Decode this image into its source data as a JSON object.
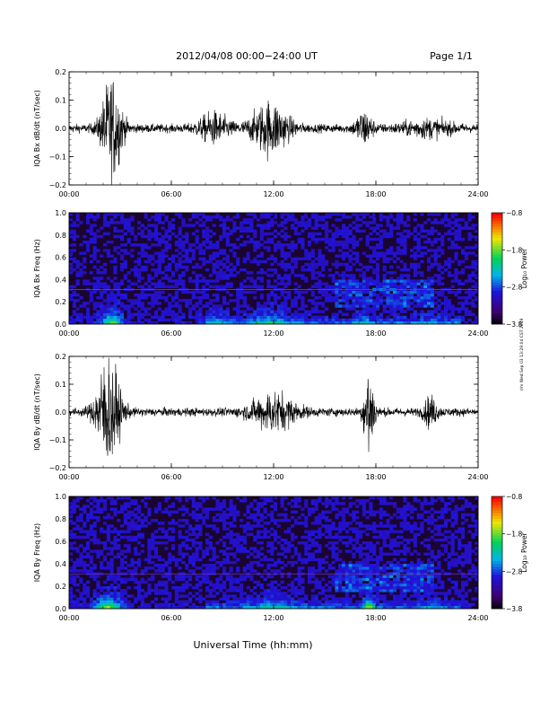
{
  "header": {
    "title": "2012/04/08   00:00−24:00 UT",
    "page": "Page 1/1"
  },
  "side_stamp": "r/m Wed Sep 03 13:29:04 CST 2019",
  "colors": {
    "spectrogram_background": "#1a0530",
    "trace": "#000000"
  },
  "chart_data": [
    {
      "type": "line",
      "ylabel": "IQA Bx dB/dt (nT/sec)",
      "xlim": [
        0,
        24
      ],
      "ylim": [
        -0.2,
        0.2
      ],
      "xticks": [
        "00:00",
        "06:00",
        "12:00",
        "18:00",
        "24:00"
      ],
      "yticks": [
        "−0.2",
        "−0.1",
        "0.0",
        "0.1",
        "0.2"
      ],
      "noise_floor": 0.018,
      "activity": [
        {
          "center": 2.5,
          "width": 0.6,
          "amp": 0.22
        },
        {
          "center": 8.5,
          "width": 0.9,
          "amp": 0.06
        },
        {
          "center": 11.8,
          "width": 1.1,
          "amp": 0.11
        },
        {
          "center": 17.3,
          "width": 0.5,
          "amp": 0.07
        },
        {
          "center": 21.0,
          "width": 1.5,
          "amp": 0.03
        }
      ]
    },
    {
      "type": "heatmap",
      "ylabel": "IQA Bx Freq (Hz)",
      "xlim": [
        0,
        24
      ],
      "ylim": [
        0.0,
        1.0
      ],
      "xticks": [
        "00:00",
        "06:00",
        "12:00",
        "18:00",
        "24:00"
      ],
      "yticks": [
        "0.0",
        "0.2",
        "0.4",
        "0.6",
        "0.8",
        "1.0"
      ],
      "colorbar": {
        "label": "Log₁₀ Power",
        "range": [
          -3.8,
          -0.8
        ],
        "ticks": [
          "−0.8",
          "−1.8",
          "−2.8",
          "−3.8"
        ]
      },
      "line_freq": 0.31
    },
    {
      "type": "line",
      "ylabel": "IQA By dB/dt (nT/sec)",
      "xlim": [
        0,
        24
      ],
      "ylim": [
        -0.2,
        0.2
      ],
      "xticks": [
        "00:00",
        "06:00",
        "12:00",
        "18:00",
        "24:00"
      ],
      "yticks": [
        "−0.2",
        "−0.1",
        "0.0",
        "0.1",
        "0.2"
      ],
      "noise_floor": 0.018,
      "activity": [
        {
          "center": 2.3,
          "width": 0.7,
          "amp": 0.24
        },
        {
          "center": 12.0,
          "width": 1.3,
          "amp": 0.08
        },
        {
          "center": 17.6,
          "width": 0.3,
          "amp": 0.22
        },
        {
          "center": 21.2,
          "width": 0.4,
          "amp": 0.06
        }
      ]
    },
    {
      "type": "heatmap",
      "ylabel": "IQA By Freq (Hz)",
      "xlim": [
        0,
        24
      ],
      "ylim": [
        0.0,
        1.0
      ],
      "xticks": [
        "00:00",
        "06:00",
        "12:00",
        "18:00",
        "24:00"
      ],
      "yticks": [
        "0.0",
        "0.2",
        "0.4",
        "0.6",
        "0.8",
        "1.0"
      ],
      "colorbar": {
        "label": "Log₁₀ Power",
        "range": [
          -3.8,
          -0.8
        ],
        "ticks": [
          "−0.8",
          "−1.8",
          "−2.8",
          "−3.8"
        ]
      },
      "line_freq": 0.31
    }
  ],
  "xlabel": "Universal Time (hh:mm)"
}
